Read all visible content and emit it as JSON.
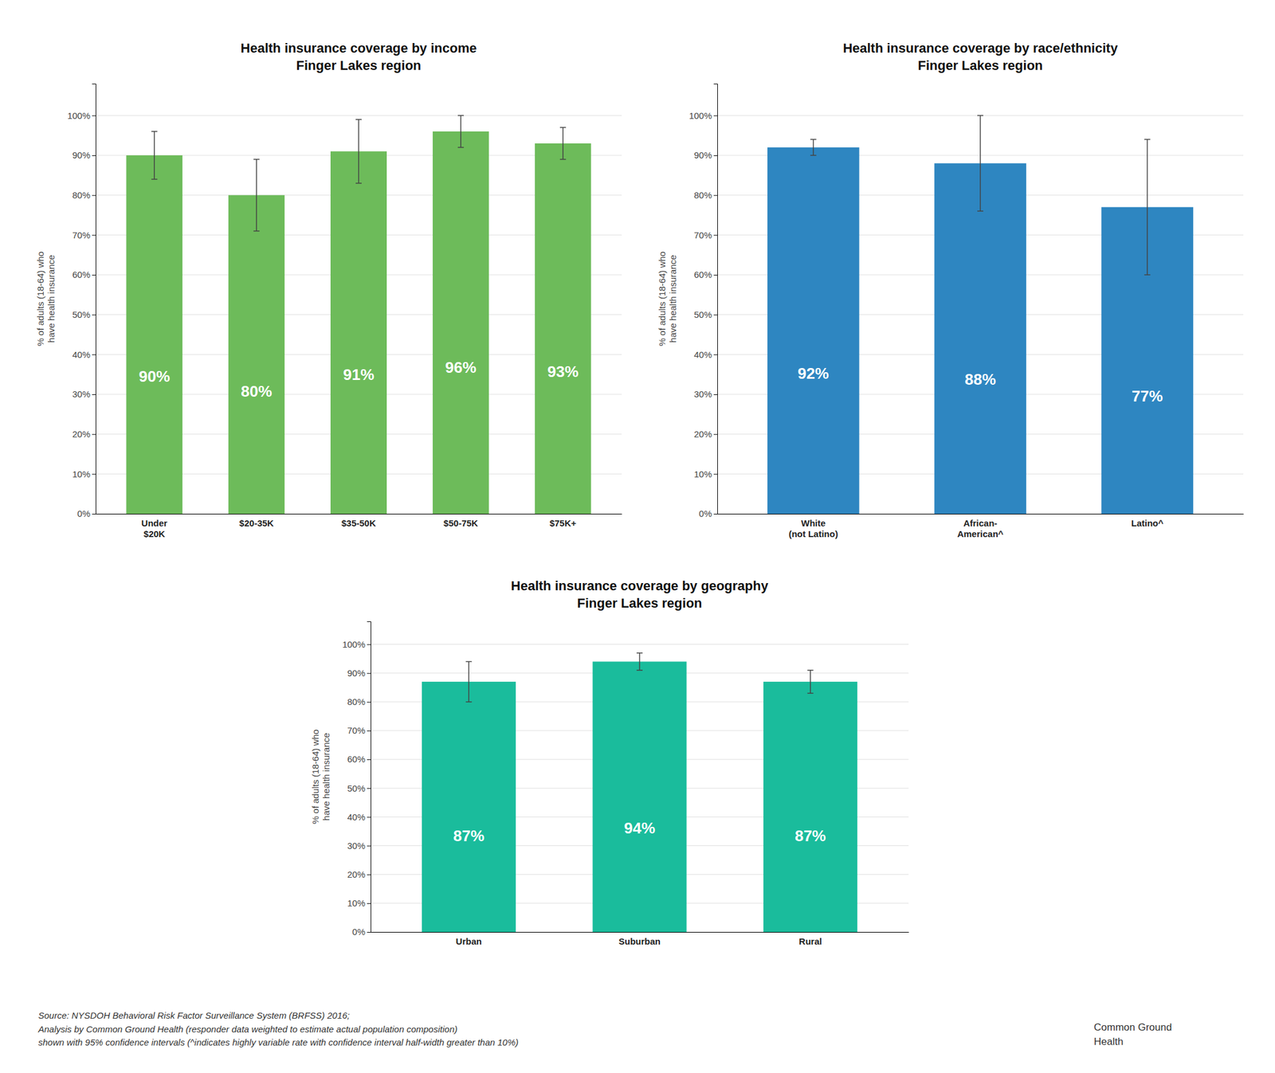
{
  "chart_data": [
    {
      "type": "bar",
      "title": "Health insurance coverage by income\nFinger Lakes region",
      "y_label": "% of adults (18-64) who\nhave health insurance",
      "categories": [
        "Under\n$20K",
        "$20-35K",
        "$35-50K",
        "$50-75K",
        "$75K+"
      ],
      "values": [
        90,
        80,
        91,
        96,
        93
      ],
      "errors": [
        6,
        9,
        8,
        4,
        4
      ],
      "value_labels": [
        "90%",
        "80%",
        "91%",
        "96%",
        "93%"
      ],
      "data_labels": true,
      "color": "#6dbb5a",
      "ylim": [
        0,
        108
      ],
      "yticks": [
        {
          "value": 0,
          "label": "0%"
        },
        {
          "value": 10,
          "label": "10%"
        },
        {
          "value": 20,
          "label": "20%"
        },
        {
          "value": 30,
          "label": "30%"
        },
        {
          "value": 40,
          "label": "40%"
        },
        {
          "value": 50,
          "label": "50%"
        },
        {
          "value": 60,
          "label": "60%"
        },
        {
          "value": 70,
          "label": "70%"
        },
        {
          "value": 80,
          "label": "80%"
        },
        {
          "value": 90,
          "label": "90%"
        },
        {
          "value": 100,
          "label": "100%"
        }
      ],
      "grid": true
    },
    {
      "type": "bar",
      "title": "Health insurance coverage by race/ethnicity\nFinger Lakes region",
      "y_label": "% of adults (18-64) who\nhave health insurance",
      "categories": [
        "White\n(not Latino)",
        "African-\nAmerican^",
        "Latino^"
      ],
      "values": [
        92,
        88,
        77
      ],
      "errors": [
        2,
        12,
        17
      ],
      "value_labels": [
        "92%",
        "88%",
        "77%"
      ],
      "data_labels": true,
      "color": "#2e86c1",
      "ylim": [
        0,
        108
      ],
      "yticks": [
        {
          "value": 0,
          "label": "0%"
        },
        {
          "value": 10,
          "label": "10%"
        },
        {
          "value": 20,
          "label": "20%"
        },
        {
          "value": 30,
          "label": "30%"
        },
        {
          "value": 40,
          "label": "40%"
        },
        {
          "value": 50,
          "label": "50%"
        },
        {
          "value": 60,
          "label": "60%"
        },
        {
          "value": 70,
          "label": "70%"
        },
        {
          "value": 80,
          "label": "80%"
        },
        {
          "value": 90,
          "label": "90%"
        },
        {
          "value": 100,
          "label": "100%"
        }
      ],
      "grid": true
    },
    {
      "type": "bar",
      "title": "Health insurance coverage by geography\nFinger Lakes region",
      "y_label": "% of adults (18-64) who\nhave health insurance",
      "categories": [
        "Urban",
        "Suburban",
        "Rural"
      ],
      "values": [
        87,
        94,
        87
      ],
      "errors": [
        7,
        3,
        4
      ],
      "value_labels": [
        "87%",
        "94%",
        "87%"
      ],
      "data_labels": true,
      "color": "#1abc9c",
      "ylim": [
        0,
        108
      ],
      "yticks": [
        {
          "value": 0,
          "label": "0%"
        },
        {
          "value": 10,
          "label": "10%"
        },
        {
          "value": 20,
          "label": "20%"
        },
        {
          "value": 30,
          "label": "30%"
        },
        {
          "value": 40,
          "label": "40%"
        },
        {
          "value": 50,
          "label": "50%"
        },
        {
          "value": 60,
          "label": "60%"
        },
        {
          "value": 70,
          "label": "70%"
        },
        {
          "value": 80,
          "label": "80%"
        },
        {
          "value": 90,
          "label": "90%"
        },
        {
          "value": 100,
          "label": "100%"
        }
      ],
      "grid": true
    }
  ],
  "annotations": [
    "Source: NYSDOH Behavioral Risk Factor Surveillance System (BRFSS) 2016;\nAnalysis by Common Ground Health (responder data weighted to estimate actual population composition)\nshown with 95% confidence intervals (^indicates highly variable rate with confidence interval half-width greater than 10%)",
    "Common Ground\nHealth"
  ]
}
